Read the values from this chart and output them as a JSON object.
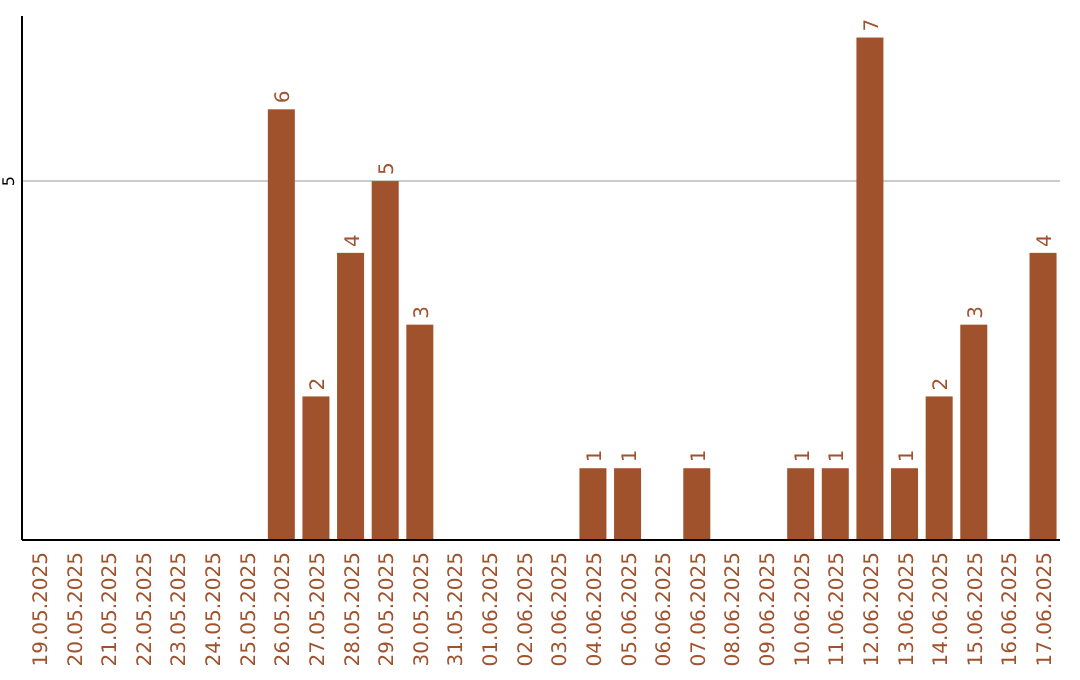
{
  "chart_data": {
    "type": "bar",
    "categories": [
      "19.05.2025",
      "20.05.2025",
      "21.05.2025",
      "22.05.2025",
      "23.05.2025",
      "24.05.2025",
      "25.05.2025",
      "26.05.2025",
      "27.05.2025",
      "28.05.2025",
      "29.05.2025",
      "30.05.2025",
      "31.05.2025",
      "01.06.2025",
      "02.06.2025",
      "03.06.2025",
      "04.06.2025",
      "05.06.2025",
      "06.06.2025",
      "07.06.2025",
      "08.06.2025",
      "09.06.2025",
      "10.06.2025",
      "11.06.2025",
      "12.06.2025",
      "13.06.2025",
      "14.06.2025",
      "15.06.2025",
      "16.06.2025",
      "17.06.2025"
    ],
    "values": [
      0,
      0,
      0,
      0,
      0,
      0,
      0,
      6,
      2,
      4,
      5,
      3,
      0,
      0,
      0,
      0,
      1,
      1,
      0,
      1,
      0,
      0,
      1,
      1,
      7,
      1,
      2,
      3,
      0,
      4
    ],
    "value_labels": [
      null,
      null,
      null,
      null,
      null,
      null,
      null,
      "6",
      "2",
      "4",
      "5",
      "3",
      null,
      null,
      null,
      null,
      "1",
      "1",
      null,
      "1",
      null,
      null,
      "1",
      "1",
      "7",
      "1",
      "2",
      "3",
      null,
      "4"
    ],
    "color": "#a0522d",
    "ylim": [
      0,
      7.3
    ],
    "yticks": [
      5
    ],
    "grid": "y"
  }
}
